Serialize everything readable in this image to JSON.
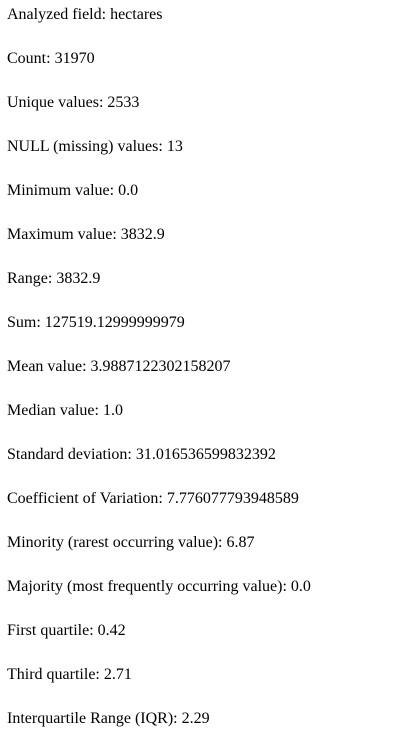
{
  "stats": {
    "lines": [
      "Analyzed field: hectares",
      "Count: 31970",
      "Unique values: 2533",
      "NULL (missing) values: 13",
      "Minimum value: 0.0",
      "Maximum value: 3832.9",
      "Range: 3832.9",
      "Sum: 127519.12999999979",
      "Mean value: 3.9887122302158207",
      "Median value: 1.0",
      "Standard deviation: 31.016536599832392",
      "Coefficient of Variation: 7.776077793948589",
      "Minority (rarest occurring value): 6.87",
      "Majority (most frequently occurring value): 0.0",
      "First quartile: 0.42",
      "Third quartile: 2.71",
      "Interquartile Range (IQR): 2.29"
    ]
  }
}
